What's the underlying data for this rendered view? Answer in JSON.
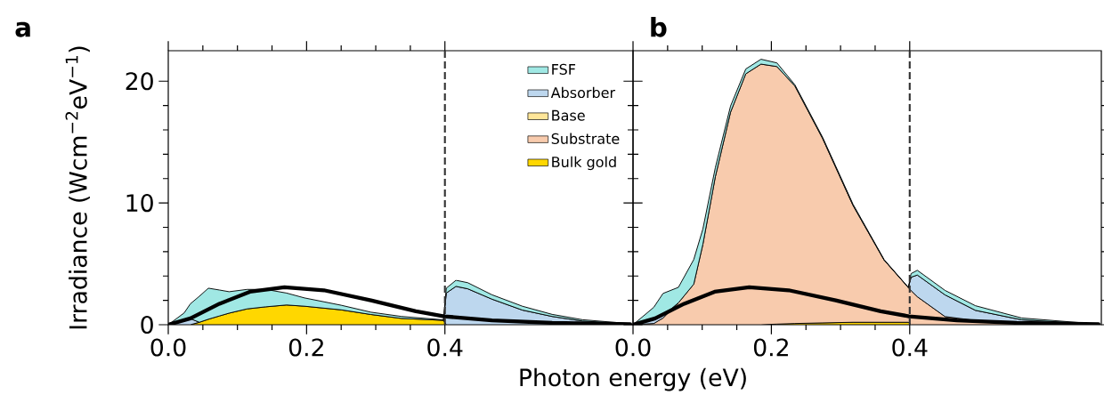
{
  "chart_data": [
    {
      "type": "area",
      "title": "a",
      "xlabel": "Photon energy (eV)",
      "ylabel": "Irradiance (Wcm$^{−2}$eV$^{−1}$)",
      "stacked": true,
      "legend": "top right",
      "x": [
        0,
        0.023,
        0.032,
        0.045,
        0.058,
        0.074,
        0.088,
        0.114,
        0.141,
        0.171,
        0.197,
        0.25,
        0.293,
        0.337,
        0.398,
        0.402,
        0.416,
        0.433,
        0.468,
        0.512,
        0.555,
        0.599,
        0.668
      ],
      "xlim": [
        0,
        0.672
      ],
      "xticks": [
        {
          "value": 0,
          "label": "0.0"
        },
        {
          "value": 0.2,
          "label": "0.2"
        },
        {
          "value": 0.4,
          "label": "0.4"
        }
      ],
      "ylim": [
        0,
        22.5
      ],
      "yticks": [
        0,
        10,
        20
      ],
      "ref_lines": [
        {
          "axis": "x",
          "value": 0.4,
          "color": "#333333",
          "line_style": "dashed"
        }
      ],
      "series": [
        {
          "name": "Bulk gold",
          "color": "#ffd700",
          "values": [
            0,
            0,
            0,
            0.2,
            0.45,
            0.72,
            0.95,
            1.3,
            1.47,
            1.62,
            1.52,
            1.22,
            0.84,
            0.52,
            0.36,
            0,
            null,
            null,
            null,
            null,
            null,
            null,
            null
          ]
        },
        {
          "name": "Substrate",
          "color": "#f8cbad",
          "values": [
            null,
            null,
            null,
            null,
            null,
            null,
            null,
            null,
            null,
            null,
            null,
            null,
            null,
            null,
            null,
            null,
            null,
            null,
            null,
            null,
            null,
            null,
            null
          ]
        },
        {
          "name": "Base",
          "color": "#ffe699",
          "values": [
            null,
            null,
            null,
            null,
            null,
            null,
            null,
            null,
            null,
            null,
            null,
            null,
            null,
            null,
            null,
            null,
            null,
            null,
            null,
            null,
            null,
            null,
            null
          ]
        },
        {
          "name": "Absorber",
          "color": "#bdd7ee",
          "values": [
            0,
            0.3,
            0.5,
            0,
            null,
            null,
            null,
            null,
            null,
            null,
            null,
            null,
            null,
            null,
            0,
            2.6,
            3.15,
            2.95,
            2.1,
            1.2,
            0.68,
            0.3,
            0.07
          ]
        },
        {
          "name": "FSF",
          "color": "#a0e8e4",
          "values": [
            0,
            0.67,
            1.22,
            2.14,
            2.55,
            2.13,
            1.76,
            1.6,
            1.43,
            0.98,
            0.68,
            0.38,
            0.19,
            0.16,
            0.04,
            0.4,
            0.5,
            0.5,
            0.36,
            0.32,
            0.17,
            0.11,
            0.02
          ]
        },
        {
          "type": "line",
          "color": "#000000",
          "x": [
            0,
            0.032,
            0.074,
            0.118,
            0.168,
            0.225,
            0.293,
            0.358,
            0.399,
            0.468,
            0.555,
            0.668
          ],
          "values": [
            0,
            0.52,
            1.72,
            2.71,
            3.08,
            2.83,
            2.0,
            1.1,
            0.69,
            0.36,
            0.15,
            0.05
          ]
        }
      ]
    },
    {
      "type": "area",
      "title": "b",
      "stacked": true,
      "tick_labels": "x",
      "x": [
        0,
        0.03,
        0.0434,
        0.0656,
        0.0878,
        0.101,
        0.119,
        0.141,
        0.163,
        0.185,
        0.208,
        0.234,
        0.274,
        0.318,
        0.363,
        0.398,
        0.402,
        0.411,
        0.451,
        0.495,
        0.562,
        0.673
      ],
      "xlim": [
        0,
        0.677
      ],
      "xticks": [
        {
          "value": 0,
          "label": "0.0"
        },
        {
          "value": 0.2,
          "label": "0.2"
        },
        {
          "value": 0.4,
          "label": "0.4"
        }
      ],
      "ylim": [
        0,
        22.5
      ],
      "yticks": [
        0,
        10,
        20
      ],
      "ref_lines": [
        {
          "axis": "x",
          "value": 0.4,
          "color": "#333333",
          "line_style": "dashed"
        }
      ],
      "series": [
        {
          "color": "#ffd700",
          "values": [
            null,
            null,
            null,
            null,
            null,
            null,
            null,
            null,
            null,
            0,
            0.05,
            0.1,
            0.15,
            0.2,
            0.2,
            0.2,
            0,
            null,
            null,
            null,
            null,
            null
          ]
        },
        {
          "color": "#f8cbad",
          "values": [
            0,
            0.1,
            0.55,
            1.8,
            3.33,
            6.6,
            12.15,
            17.45,
            20.6,
            21.4,
            21.15,
            19.5,
            15.15,
            9.6,
            5.1,
            2.85,
            2.8,
            2.3,
            0.67,
            0.35,
            0.15,
            0.02
          ]
        },
        {
          "color": "#bdd7ee",
          "values": [
            0,
            0.3,
            0.2,
            0,
            null,
            null,
            null,
            null,
            null,
            null,
            null,
            null,
            null,
            null,
            null,
            0,
            1.1,
            1.78,
            1.78,
            0.83,
            0.25,
            0.02
          ]
        },
        {
          "color": "#a0e8e4",
          "values": [
            0,
            1.03,
            1.82,
            1.27,
            2.02,
            1.27,
            0.75,
            0.51,
            0.4,
            0.4,
            0.3,
            0.1,
            0.1,
            0.1,
            0.05,
            0.02,
            0.3,
            0.39,
            0.37,
            0.38,
            0.15,
            0.01
          ]
        },
        {
          "type": "line",
          "color": "#000000",
          "x": [
            0,
            0.032,
            0.074,
            0.118,
            0.168,
            0.225,
            0.293,
            0.358,
            0.399,
            0.468,
            0.555,
            0.673
          ],
          "values": [
            0,
            0.52,
            1.72,
            2.71,
            3.08,
            2.83,
            2.0,
            1.1,
            0.69,
            0.36,
            0.15,
            0.05
          ]
        }
      ]
    }
  ]
}
